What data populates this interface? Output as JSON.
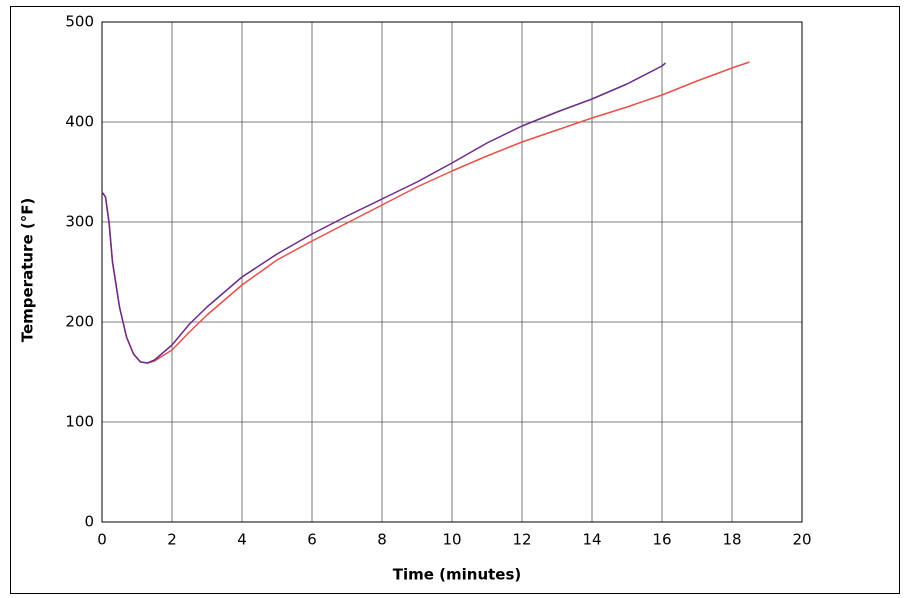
{
  "chart_data": {
    "type": "line",
    "x_label": "Time (minutes)",
    "y_label": "Temperature (°F)",
    "xlim": [
      0,
      20
    ],
    "xticks": [
      0,
      2,
      4,
      6,
      8,
      10,
      12,
      14,
      16,
      18,
      20
    ],
    "ylim": [
      0,
      500
    ],
    "yticks": [
      0,
      100,
      200,
      300,
      400,
      500
    ],
    "grid": true,
    "series": [
      {
        "color": "#6a2c8a",
        "x": [
          0,
          0.1,
          0.2,
          0.3,
          0.5,
          0.7,
          0.9,
          1.1,
          1.3,
          1.5,
          2,
          2.5,
          3,
          4,
          5,
          6,
          7,
          8,
          9,
          10,
          11,
          12,
          13,
          14,
          15,
          16,
          16.1
        ],
        "values": [
          330,
          325,
          300,
          260,
          215,
          185,
          168,
          160,
          159,
          162,
          177,
          198,
          215,
          245,
          268,
          288,
          306,
          323,
          340,
          359,
          379,
          396,
          410,
          423,
          438,
          456,
          459
        ]
      },
      {
        "color": "#e8504a",
        "x": [
          0,
          0.1,
          0.2,
          0.3,
          0.5,
          0.7,
          0.9,
          1.1,
          1.3,
          1.5,
          2,
          2.5,
          3,
          4,
          5,
          6,
          7,
          8,
          9,
          10,
          11,
          12,
          13,
          14,
          15,
          16,
          17,
          18,
          18.5
        ],
        "values": [
          330,
          325,
          300,
          260,
          215,
          185,
          168,
          160,
          159,
          161,
          172,
          190,
          207,
          237,
          262,
          281,
          299,
          317,
          335,
          351,
          366,
          380,
          392,
          404,
          415,
          427,
          441,
          454,
          460
        ]
      }
    ]
  }
}
